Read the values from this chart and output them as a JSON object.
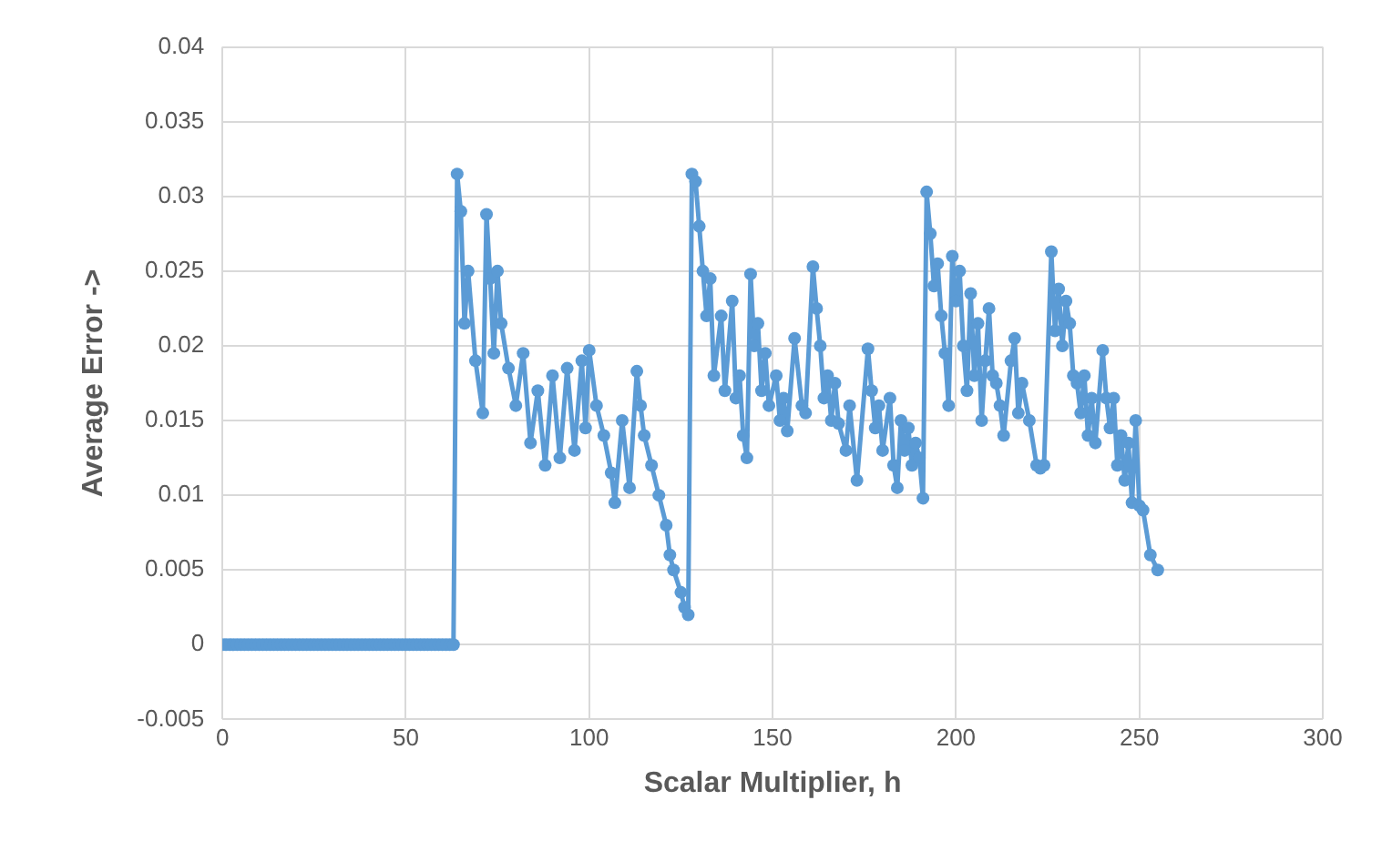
{
  "chart_data": {
    "type": "line",
    "xlabel": "Scalar Multiplier, h",
    "ylabel": "Average Error ->",
    "xlim": [
      0,
      300
    ],
    "xticks": [
      0,
      50,
      100,
      150,
      200,
      250,
      300
    ],
    "ylim": [
      -0.005,
      0.04
    ],
    "yticks": [
      -0.005,
      0,
      0.005,
      0.01,
      0.015,
      0.02,
      0.025,
      0.03,
      0.035,
      0.04
    ],
    "grid": true,
    "legend": false,
    "marker": "circle",
    "line_style": "solid",
    "series": [
      {
        "color": "#5b9bd5",
        "x": [
          0,
          1,
          2,
          3,
          4,
          5,
          6,
          7,
          8,
          9,
          10,
          11,
          12,
          13,
          14,
          15,
          16,
          17,
          18,
          19,
          20,
          21,
          22,
          23,
          24,
          25,
          26,
          27,
          28,
          29,
          30,
          31,
          32,
          33,
          34,
          35,
          36,
          37,
          38,
          39,
          40,
          41,
          42,
          43,
          44,
          45,
          46,
          47,
          48,
          49,
          50,
          51,
          52,
          53,
          54,
          55,
          56,
          57,
          58,
          59,
          60,
          61,
          62,
          63,
          64,
          65,
          66,
          67,
          69,
          71,
          72,
          73,
          74,
          75,
          76,
          78,
          80,
          82,
          84,
          86,
          88,
          90,
          92,
          94,
          96,
          98,
          99,
          100,
          102,
          104,
          106,
          107,
          109,
          111,
          113,
          114,
          115,
          117,
          119,
          121,
          122,
          123,
          125,
          126,
          127,
          128,
          129,
          130,
          131,
          132,
          133,
          134,
          136,
          137,
          139,
          140,
          141,
          142,
          143,
          144,
          145,
          146,
          147,
          148,
          149,
          151,
          152,
          153,
          154,
          156,
          158,
          159,
          161,
          162,
          163,
          164,
          165,
          166,
          167,
          168,
          170,
          171,
          173,
          176,
          177,
          178,
          179,
          180,
          182,
          183,
          184,
          185,
          186,
          187,
          188,
          189,
          190,
          191,
          192,
          193,
          194,
          195,
          196,
          197,
          198,
          199,
          200,
          201,
          202,
          203,
          204,
          205,
          206,
          207,
          208,
          209,
          210,
          211,
          212,
          213,
          215,
          216,
          217,
          218,
          220,
          222,
          223,
          224,
          226,
          227,
          228,
          229,
          230,
          231,
          232,
          233,
          234,
          235,
          236,
          237,
          238,
          240,
          241,
          242,
          243,
          244,
          245,
          246,
          247,
          248,
          249,
          250,
          251,
          253,
          255
        ],
        "values": [
          0,
          0,
          0,
          0,
          0,
          0,
          0,
          0,
          0,
          0,
          0,
          0,
          0,
          0,
          0,
          0,
          0,
          0,
          0,
          0,
          0,
          0,
          0,
          0,
          0,
          0,
          0,
          0,
          0,
          0,
          0,
          0,
          0,
          0,
          0,
          0,
          0,
          0,
          0,
          0,
          0,
          0,
          0,
          0,
          0,
          0,
          0,
          0,
          0,
          0,
          0,
          0,
          0,
          0,
          0,
          0,
          0,
          0,
          0,
          0,
          0,
          0,
          0,
          0,
          0.0315,
          0.029,
          0.0215,
          0.025,
          0.019,
          0.0155,
          0.0288,
          0.0245,
          0.0195,
          0.025,
          0.0215,
          0.0185,
          0.016,
          0.0195,
          0.0135,
          0.017,
          0.012,
          0.018,
          0.0125,
          0.0185,
          0.013,
          0.019,
          0.0145,
          0.0197,
          0.016,
          0.014,
          0.0115,
          0.0095,
          0.015,
          0.0105,
          0.0183,
          0.016,
          0.014,
          0.012,
          0.01,
          0.008,
          0.006,
          0.005,
          0.0035,
          0.0025,
          0.002,
          0.0315,
          0.031,
          0.028,
          0.025,
          0.022,
          0.0245,
          0.018,
          0.022,
          0.017,
          0.023,
          0.0165,
          0.018,
          0.014,
          0.0125,
          0.0248,
          0.02,
          0.0215,
          0.017,
          0.0195,
          0.016,
          0.018,
          0.015,
          0.0165,
          0.0143,
          0.0205,
          0.016,
          0.0155,
          0.0253,
          0.0225,
          0.02,
          0.0165,
          0.018,
          0.015,
          0.0175,
          0.0148,
          0.013,
          0.016,
          0.011,
          0.0198,
          0.017,
          0.0145,
          0.016,
          0.013,
          0.0165,
          0.012,
          0.0105,
          0.015,
          0.013,
          0.0145,
          0.012,
          0.0135,
          0.0125,
          0.0098,
          0.0303,
          0.0275,
          0.024,
          0.0255,
          0.022,
          0.0195,
          0.016,
          0.026,
          0.023,
          0.025,
          0.02,
          0.017,
          0.0235,
          0.018,
          0.0215,
          0.015,
          0.019,
          0.0225,
          0.018,
          0.0175,
          0.016,
          0.014,
          0.019,
          0.0205,
          0.0155,
          0.0175,
          0.015,
          0.012,
          0.0118,
          0.012,
          0.0263,
          0.021,
          0.0238,
          0.02,
          0.023,
          0.0215,
          0.018,
          0.0175,
          0.0155,
          0.018,
          0.014,
          0.0165,
          0.0135,
          0.0197,
          0.0165,
          0.0145,
          0.0165,
          0.012,
          0.014,
          0.011,
          0.0135,
          0.0095,
          0.015,
          0.0093,
          0.009,
          0.006,
          0.005
        ]
      }
    ]
  }
}
